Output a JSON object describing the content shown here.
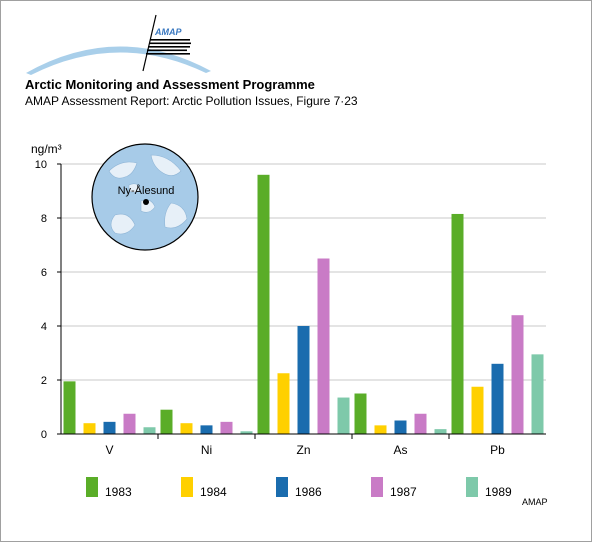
{
  "header": {
    "logo_text": "AMAP",
    "title": "Arctic Monitoring and Assessment Programme",
    "subtitle": "AMAP Assessment Report: Arctic Pollution Issues, Figure 7·23"
  },
  "map": {
    "station_label": "Ny-Ålesund"
  },
  "footer": {
    "credit": "AMAP"
  },
  "colors": {
    "1983": "#5aad28",
    "1984": "#ffd000",
    "1986": "#1a6cae",
    "1987": "#c97bc6",
    "1989": "#7ec9aa",
    "gridline": "#c8c8c8",
    "axis": "#000000",
    "logo_arc": "#a9cfea",
    "map_ocean": "#a7cbe8"
  },
  "chart_data": {
    "type": "bar",
    "categories": [
      "V",
      "Ni",
      "Zn",
      "As",
      "Pb"
    ],
    "series": [
      {
        "name": "1983",
        "values": [
          1.95,
          0.9,
          9.6,
          1.5,
          8.15
        ]
      },
      {
        "name": "1984",
        "values": [
          0.4,
          0.4,
          2.25,
          0.32,
          1.75
        ]
      },
      {
        "name": "1986",
        "values": [
          0.45,
          0.32,
          4.0,
          0.5,
          2.6
        ]
      },
      {
        "name": "1987",
        "values": [
          0.75,
          0.45,
          6.5,
          0.75,
          4.4
        ]
      },
      {
        "name": "1989",
        "values": [
          0.25,
          0.1,
          1.35,
          0.18,
          2.95
        ]
      }
    ],
    "ylabel": "ng/m³",
    "yticks": [
      "0",
      "2",
      "4",
      "6",
      "8",
      "10"
    ],
    "ylim": [
      0,
      10
    ],
    "grid": true,
    "legend": "bottom"
  }
}
